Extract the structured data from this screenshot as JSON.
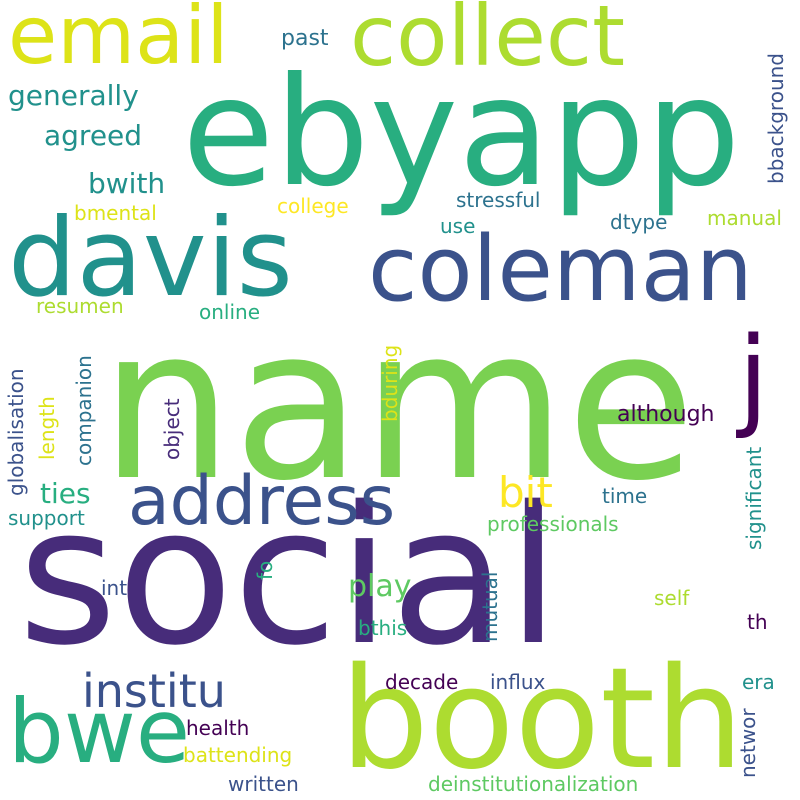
{
  "words": {
    "email": "email",
    "collect": "collect",
    "ebyapp": "ebyapp",
    "davis": "davis",
    "coleman": "coleman",
    "name": "name",
    "social": "social",
    "booth": "booth",
    "address": "address",
    "bwe": "bwe",
    "institu": "institu",
    "j": "j",
    "bit": "bit",
    "generally": "generally",
    "agreed": "agreed",
    "bwith": "bwith",
    "bmental": "bmental",
    "past": "past",
    "bbackground": "bbackground",
    "college": "college",
    "stressful": "stressful",
    "use": "use",
    "dtype": "dtype",
    "manual": "manual",
    "resumen": "resumen",
    "online": "online",
    "globalisation": "globalisation",
    "length": "length",
    "companion": "companion",
    "object": "object",
    "bduring": "bduring",
    "although": "although",
    "significant": "significant",
    "ties": "ties",
    "support": "support",
    "time": "time",
    "professionals": "professionals",
    "play": "play",
    "fo": "fo",
    "int": "int",
    "mutual": "mutual",
    "self": "self",
    "bthis": "bthis",
    "th": "th",
    "decade": "decade",
    "influx": "influx",
    "era": "era",
    "health": "health",
    "networ": "networ",
    "battending": "battending",
    "written": "written",
    "deinstitutionalization": "deinstitutionalization"
  },
  "colors": {
    "background": "#ffffff",
    "palette": [
      "#440154",
      "#472c7a",
      "#3b528b",
      "#2c728e",
      "#21918c",
      "#28ae80",
      "#5ec962",
      "#7ad151",
      "#addc30",
      "#dde318",
      "#fde725"
    ]
  }
}
